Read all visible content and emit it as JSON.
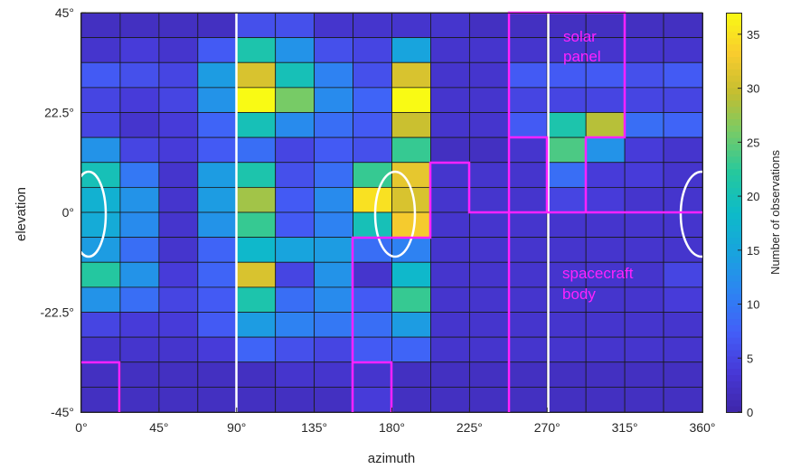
{
  "chart_data": {
    "type": "heatmap",
    "xlabel": "azimuth",
    "ylabel": "elevation",
    "colorbar_label": "Number of observations",
    "xlim": [
      0,
      360
    ],
    "ylim": [
      -45,
      45
    ],
    "x_ticks": [
      {
        "value": 0,
        "label": "0°"
      },
      {
        "value": 45,
        "label": "45°"
      },
      {
        "value": 90,
        "label": "90°"
      },
      {
        "value": 135,
        "label": "135°"
      },
      {
        "value": 180,
        "label": "180°"
      },
      {
        "value": 225,
        "label": "225°"
      },
      {
        "value": 270,
        "label": "270°"
      },
      {
        "value": 315,
        "label": "315°"
      },
      {
        "value": 360,
        "label": "360°"
      }
    ],
    "y_ticks": [
      {
        "value": 45,
        "label": "45°"
      },
      {
        "value": 22.5,
        "label": "22.5°"
      },
      {
        "value": 0,
        "label": "0°"
      },
      {
        "value": -22.5,
        "label": "-22.5°"
      },
      {
        "value": -45,
        "label": "-45°"
      }
    ],
    "colorbar_ticks": [
      0,
      5,
      10,
      15,
      20,
      25,
      30,
      35
    ],
    "color_range": [
      0,
      37
    ],
    "colormap": "parula",
    "bin_width_azimuth": 22.5,
    "bin_height_elevation": 5.625,
    "values_rows_top_to_bottom": [
      [
        2,
        2,
        2,
        2,
        6,
        6,
        3,
        3,
        3,
        3,
        2,
        2,
        2,
        2,
        2,
        2
      ],
      [
        3,
        4,
        3,
        7,
        21,
        13,
        6,
        5,
        15,
        3,
        3,
        3,
        3,
        3,
        3,
        3
      ],
      [
        7,
        6,
        5,
        14,
        31,
        20,
        11,
        6,
        31,
        3,
        3,
        7,
        7,
        7,
        6,
        7
      ],
      [
        5,
        4,
        5,
        13,
        37,
        26,
        12,
        8,
        37,
        3,
        3,
        5,
        5,
        5,
        5,
        5
      ],
      [
        5,
        3,
        4,
        8,
        20,
        12,
        9,
        7,
        30,
        3,
        3,
        7,
        21,
        29,
        9,
        8
      ],
      [
        13,
        5,
        4,
        7,
        9,
        5,
        7,
        6,
        23,
        2,
        2,
        3,
        24,
        13,
        4,
        3
      ],
      [
        20,
        10,
        3,
        14,
        21,
        6,
        9,
        23,
        32,
        3,
        3,
        3,
        9,
        4,
        4,
        3
      ],
      [
        17,
        13,
        3,
        14,
        28,
        7,
        12,
        35,
        31,
        3,
        3,
        3,
        5,
        4,
        3,
        3
      ],
      [
        16,
        12,
        3,
        13,
        23,
        7,
        11,
        20,
        33,
        3,
        3,
        3,
        3,
        3,
        3,
        3
      ],
      [
        14,
        9,
        3,
        8,
        18,
        15,
        14,
        9,
        11,
        3,
        3,
        3,
        3,
        3,
        3,
        3
      ],
      [
        22,
        13,
        4,
        8,
        31,
        5,
        13,
        3,
        18,
        3,
        3,
        3,
        3,
        3,
        3,
        5
      ],
      [
        13,
        9,
        5,
        7,
        21,
        9,
        12,
        7,
        23,
        3,
        3,
        3,
        3,
        3,
        3,
        4
      ],
      [
        5,
        4,
        4,
        7,
        14,
        11,
        10,
        9,
        14,
        3,
        3,
        3,
        3,
        3,
        3,
        3
      ],
      [
        3,
        3,
        3,
        4,
        8,
        6,
        5,
        7,
        8,
        3,
        3,
        3,
        3,
        3,
        3,
        3
      ],
      [
        2,
        2,
        2,
        2,
        2,
        3,
        3,
        3,
        2,
        2,
        2,
        2,
        2,
        2,
        2,
        2
      ],
      [
        2,
        2,
        2,
        2,
        2,
        2,
        2,
        4,
        2,
        2,
        2,
        2,
        2,
        2,
        2,
        2
      ]
    ],
    "white_lines_azimuth": [
      90,
      270
    ],
    "annotations": [
      "solar panel",
      "spacecraft body"
    ],
    "colors": {
      "overlay_magenta": "#ff22ff",
      "overlay_white": "#ffffff"
    }
  }
}
